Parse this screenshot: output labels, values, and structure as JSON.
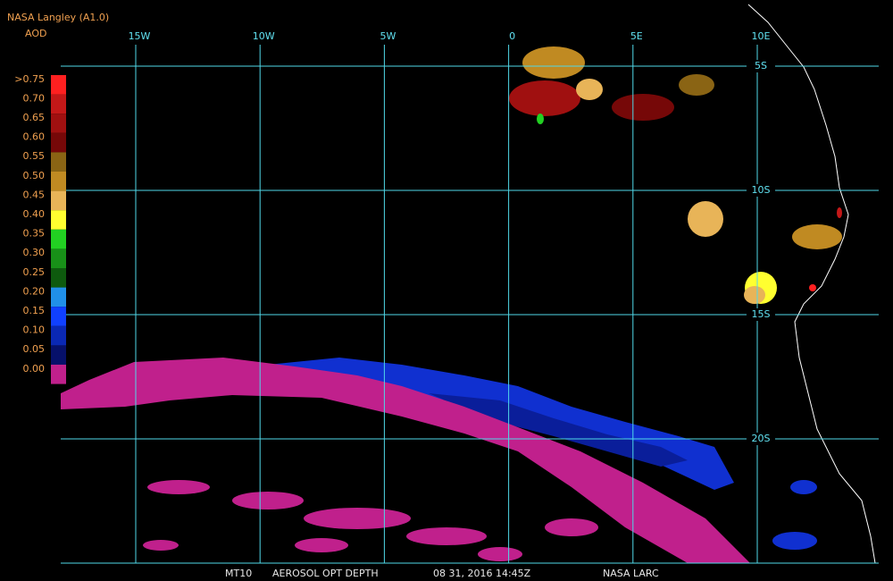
{
  "header": {
    "source": "NASA Langley (A1.0)",
    "variable": "AOD"
  },
  "legend": {
    "labels": [
      ">0.75",
      "0.70",
      "0.65",
      "0.60",
      "0.55",
      "0.50",
      "0.45",
      "0.40",
      "0.35",
      "0.30",
      "0.25",
      "0.20",
      "0.15",
      "0.10",
      "0.05",
      "0.00"
    ],
    "colors": [
      "#ff2020",
      "#c41818",
      "#a01010",
      "#760808",
      "#8a6414",
      "#c08a22",
      "#e8b458",
      "#ffff30",
      "#22d022",
      "#189018",
      "#0e5a0e",
      "#2090e8",
      "#1040ff",
      "#0a28b4",
      "#06106a",
      "#c0208c"
    ]
  },
  "map": {
    "longitude_labels": [
      "15W",
      "10W",
      "5W",
      "0",
      "5E",
      "10E"
    ],
    "latitude_labels": [
      "5S",
      "10S",
      "15S",
      "20S"
    ]
  },
  "footer": [
    "MT10",
    "AEROSOL OPT DEPTH",
    "08 31, 2016 14:45Z",
    "NASA LARC"
  ]
}
